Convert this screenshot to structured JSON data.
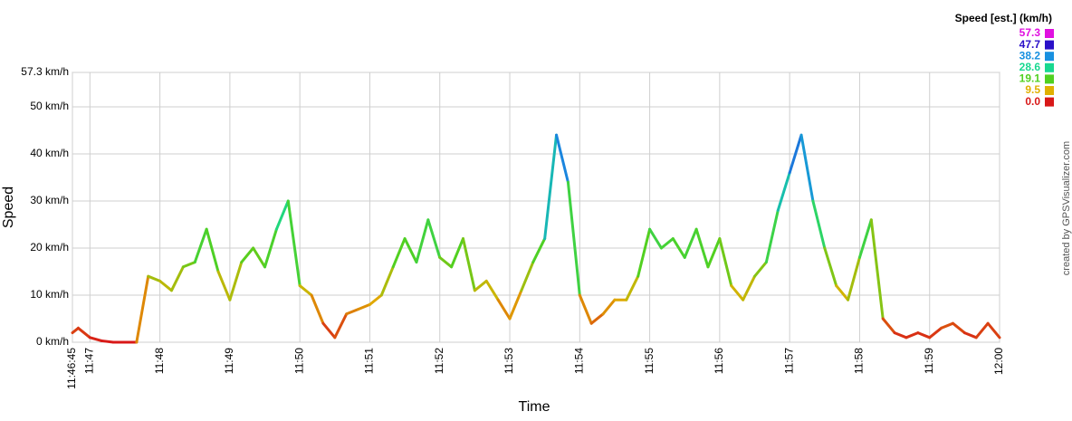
{
  "chart_data": {
    "type": "line",
    "x_label": "Time",
    "y_label": "Speed",
    "credit": "created by GPSVisualizer.com",
    "legend": {
      "title": "Speed [est.] (km/h)",
      "position": "top-right"
    },
    "color_scale": [
      {
        "value": 57.3,
        "color": "#e010e0"
      },
      {
        "value": 47.7,
        "color": "#2a10c8"
      },
      {
        "value": 38.2,
        "color": "#1890e0"
      },
      {
        "value": 28.6,
        "color": "#18d890"
      },
      {
        "value": 19.1,
        "color": "#50d020"
      },
      {
        "value": 9.5,
        "color": "#e0b000"
      },
      {
        "value": 0,
        "label": "0.0",
        "color": "#d81818"
      }
    ],
    "grid": true,
    "xlim": [
      "11:46:45",
      "12:00"
    ],
    "xticks": [
      "11:46:45",
      "11:47",
      "11:48",
      "11:49",
      "11:50",
      "11:51",
      "11:52",
      "11:53",
      "11:54",
      "11:55",
      "11:56",
      "11:57",
      "11:58",
      "11:59",
      "12:00"
    ],
    "ylim": [
      0,
      57.3
    ],
    "yticks": [
      {
        "value": 0,
        "label": "0 km/h"
      },
      {
        "value": 10,
        "label": "10 km/h"
      },
      {
        "value": 20,
        "label": "20 km/h"
      },
      {
        "value": 30,
        "label": "30 km/h"
      },
      {
        "value": 40,
        "label": "40 km/h"
      },
      {
        "value": 50,
        "label": "50 km/h"
      },
      {
        "value": 57.3,
        "label": "57.3 km/h"
      }
    ],
    "x": [
      "11:46:45",
      "11:46:50",
      "11:47:00",
      "11:47:10",
      "11:47:20",
      "11:47:30",
      "11:47:40",
      "11:47:50",
      "11:48:00",
      "11:48:10",
      "11:48:20",
      "11:48:30",
      "11:48:40",
      "11:48:50",
      "11:49:00",
      "11:49:10",
      "11:49:20",
      "11:49:30",
      "11:49:40",
      "11:49:50",
      "11:50:00",
      "11:50:10",
      "11:50:20",
      "11:50:30",
      "11:50:40",
      "11:50:50",
      "11:51:00",
      "11:51:10",
      "11:51:20",
      "11:51:30",
      "11:51:40",
      "11:51:50",
      "11:52:00",
      "11:52:10",
      "11:52:20",
      "11:52:30",
      "11:52:40",
      "11:52:50",
      "11:53:00",
      "11:53:10",
      "11:53:20",
      "11:53:30",
      "11:53:40",
      "11:53:50",
      "11:54:00",
      "11:54:10",
      "11:54:20",
      "11:54:30",
      "11:54:40",
      "11:54:50",
      "11:55:00",
      "11:55:10",
      "11:55:20",
      "11:55:30",
      "11:55:40",
      "11:55:50",
      "11:56:00",
      "11:56:10",
      "11:56:20",
      "11:56:30",
      "11:56:40",
      "11:56:50",
      "11:57:00",
      "11:57:10",
      "11:57:20",
      "11:57:30",
      "11:57:40",
      "11:57:50",
      "11:58:00",
      "11:58:10",
      "11:58:20",
      "11:58:30",
      "11:58:40",
      "11:58:50",
      "11:59:00",
      "11:59:10",
      "11:59:20",
      "11:59:30",
      "11:59:40",
      "11:59:50",
      "12:00:00"
    ],
    "values": [
      2,
      3,
      1,
      0.3,
      0,
      0,
      0,
      14,
      13,
      11,
      16,
      17,
      24,
      15,
      9,
      17,
      20,
      16,
      24,
      30,
      12,
      10,
      4,
      1,
      6,
      7,
      8,
      10,
      16,
      22,
      17,
      26,
      18,
      16,
      22,
      11,
      13,
      9,
      5,
      11,
      17,
      22,
      44,
      34,
      10,
      4,
      6,
      9,
      9,
      14,
      24,
      20,
      22,
      18,
      24,
      16,
      22,
      12,
      9,
      14,
      17,
      28,
      36,
      44,
      30,
      20,
      12,
      9,
      18,
      26,
      5,
      2,
      1,
      2,
      1,
      3,
      4,
      2,
      1,
      4,
      1
    ]
  }
}
